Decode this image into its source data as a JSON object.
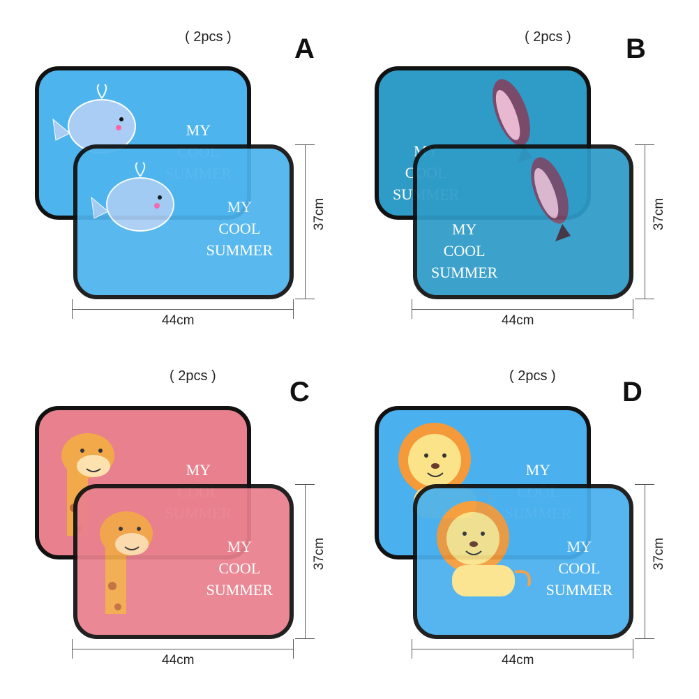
{
  "variants": [
    {
      "letter": "A",
      "pcs": "( 2pcs )",
      "width": "44cm",
      "height": "37cm",
      "slogan": [
        "MY",
        "COOL",
        "SUMMER"
      ],
      "bg": "#4db4ee",
      "animal": "whale-icon"
    },
    {
      "letter": "B",
      "pcs": "( 2pcs )",
      "width": "44cm",
      "height": "37cm",
      "slogan": [
        "MY",
        "COOL",
        "SUMMER"
      ],
      "bg": "#2f9cc8",
      "animal": "orca-icon"
    },
    {
      "letter": "C",
      "pcs": "( 2pcs )",
      "width": "44cm",
      "height": "37cm",
      "slogan": [
        "MY",
        "COOL",
        "SUMMER"
      ],
      "bg": "#e9808e",
      "animal": "giraffe-icon"
    },
    {
      "letter": "D",
      "pcs": "( 2pcs )",
      "width": "44cm",
      "height": "37cm",
      "slogan": [
        "MY",
        "COOL",
        "SUMMER"
      ],
      "bg": "#4ab0ee",
      "animal": "lion-icon"
    }
  ]
}
